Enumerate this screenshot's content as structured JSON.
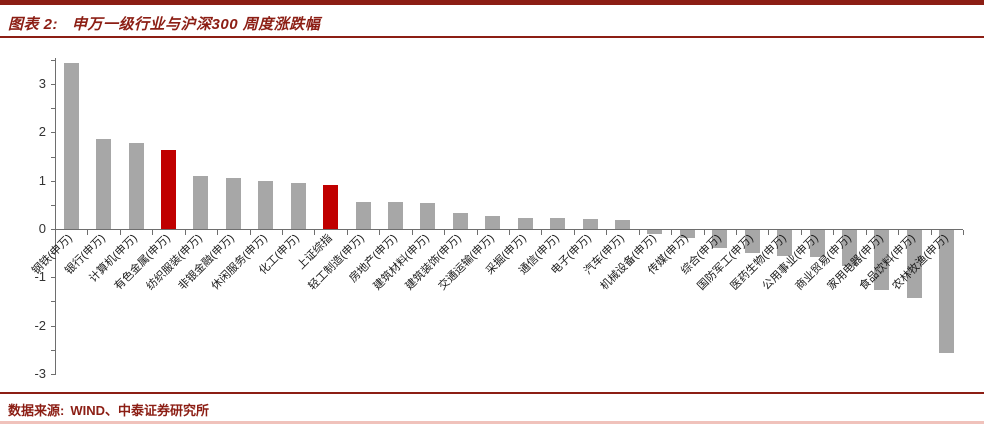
{
  "header": {
    "tag": "图表 2:",
    "title": "申万一级行业与沪深300 周度涨跌幅"
  },
  "footer": {
    "source_label": "数据来源:",
    "source_value": "WIND、中泰证券研究所"
  },
  "colors": {
    "accent_dark_red": "#8C1E14",
    "bar_red": "#C00000",
    "bar_gray": "#A7A7A7",
    "axis_gray": "#6E6E6E",
    "tick_label": "#333333",
    "category_label": "#1A1A1A",
    "bottom_rule_light": "#F0C2BB"
  },
  "chart_data": {
    "type": "bar",
    "title": "申万一级行业与沪深300 周度涨跌幅",
    "xlabel": "",
    "ylabel": "",
    "ylim": [
      -3,
      3.5
    ],
    "y_ticks": [
      3,
      2,
      1,
      0,
      -1,
      -2,
      -3
    ],
    "grid": false,
    "legend_position": "none",
    "categories": [
      "钢铁(申万)",
      "银行(申万)",
      "计算机(申万)",
      "有色金属(申万)",
      "纺织服装(申万)",
      "非银金融(申万)",
      "休闲服务(申万)",
      "化工(申万)",
      "上证综指",
      "轻工制造(申万)",
      "房地产(申万)",
      "建筑材料(申万)",
      "建筑装饰(申万)",
      "交通运输(申万)",
      "采掘(申万)",
      "通信(申万)",
      "电子(申万)",
      "汽车(申万)",
      "机械设备(申万)",
      "传媒(申万)",
      "综合(申万)",
      "国防军工(申万)",
      "医药生物(申万)",
      "公用事业(申万)",
      "商业贸易(申万)",
      "家用电器(申万)",
      "食品饮料(申万)",
      "农林牧渔(申万)"
    ],
    "values": [
      3.44,
      1.86,
      1.77,
      1.64,
      1.1,
      1.05,
      0.99,
      0.95,
      0.91,
      0.56,
      0.55,
      0.54,
      0.34,
      0.27,
      0.23,
      0.22,
      0.21,
      0.19,
      -0.08,
      -0.17,
      -0.38,
      -0.48,
      -0.53,
      -0.56,
      -0.74,
      -1.24,
      -1.4,
      -2.55
    ],
    "highlight_indices": [
      3,
      8
    ],
    "highlighted_bars": [
      "有色金属(申万)",
      "上证综指"
    ]
  }
}
